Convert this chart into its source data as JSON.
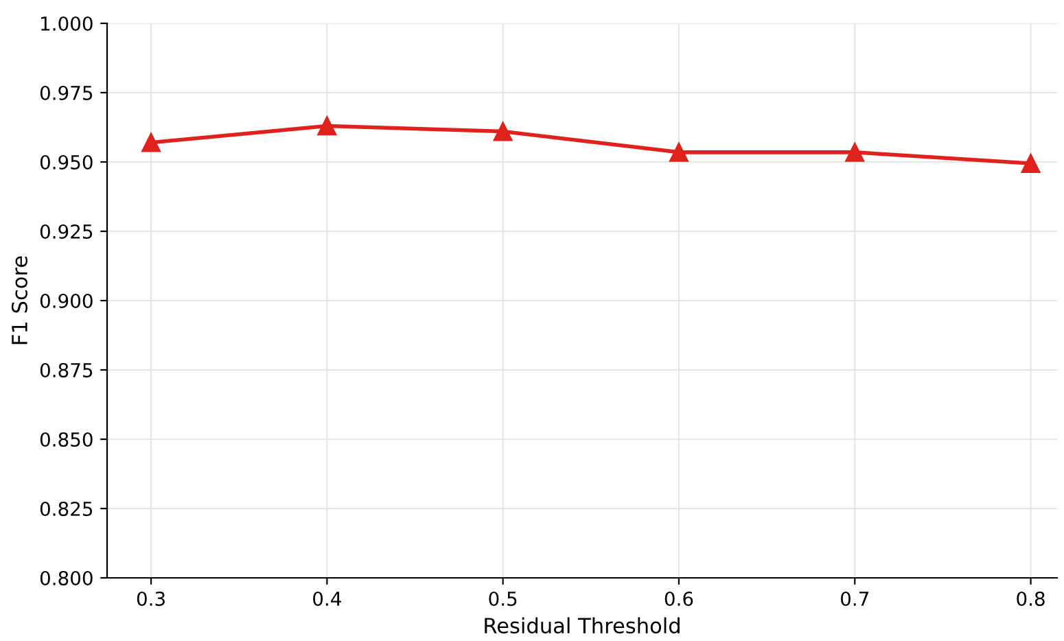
{
  "chart_data": {
    "type": "line",
    "xlabel": "Residual Threshold",
    "ylabel": "F1 Score",
    "x": [
      0.3,
      0.4,
      0.5,
      0.6,
      0.7,
      0.8
    ],
    "series": [
      {
        "color": "#e0211c",
        "values": [
          0.957,
          0.963,
          0.961,
          0.9535,
          0.9535,
          0.9495
        ]
      }
    ],
    "xlim": [
      0.275,
      0.815
    ],
    "xticks": [
      0.3,
      0.4,
      0.5,
      0.6,
      0.7,
      0.8
    ],
    "ylim": [
      0.8,
      1.0
    ],
    "yticks": [
      {
        "value": 0.8,
        "label": "0.800"
      },
      {
        "value": 0.825,
        "label": "0.825"
      },
      {
        "value": 0.85,
        "label": "0.850"
      },
      {
        "value": 0.875,
        "label": "0.875"
      },
      {
        "value": 0.9,
        "label": "0.900"
      },
      {
        "value": 0.925,
        "label": "0.925"
      },
      {
        "value": 0.95,
        "label": "0.950"
      },
      {
        "value": 0.975,
        "label": "0.975"
      },
      {
        "value": 1.0,
        "label": "1.000"
      }
    ],
    "grid": true,
    "marker": "triangle",
    "line_style": "solid"
  }
}
